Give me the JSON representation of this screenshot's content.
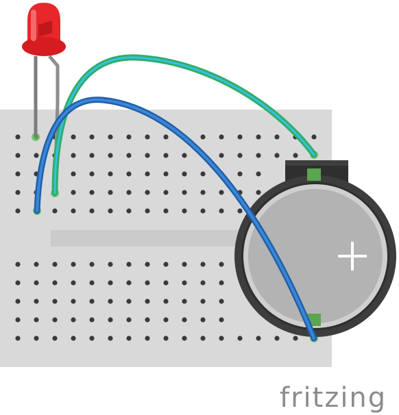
{
  "diagram": {
    "breadboard": {
      "rows_per_half": 5,
      "columns": 17,
      "body_color": "#d9d9d9",
      "hole_color": "#3a3a3a",
      "highlight_color": "#5fbf5f"
    },
    "led": {
      "color": "#e8272a"
    },
    "battery": {
      "positive_marking": "+",
      "rim_color": "#3d3d3d",
      "face_color": "#b3b3b3"
    },
    "wires": [
      {
        "id": "green-wire",
        "color": "#2fae6a",
        "inner_color": "#3bbfe0"
      },
      {
        "id": "blue-wire",
        "color": "#1f5fa8",
        "inner_color": "#3b86d6"
      }
    ]
  },
  "brand": {
    "logo_text": "fritzing"
  }
}
